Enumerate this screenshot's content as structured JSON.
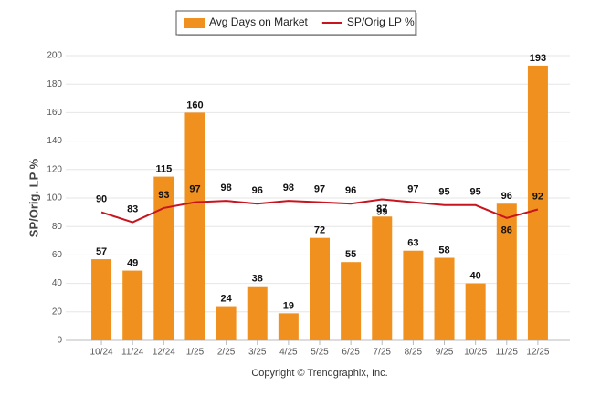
{
  "chart_data": {
    "type": "bar",
    "y_label": "SP/Orig. LP %",
    "footer": "Copyright © Trendgraphix, Inc.",
    "categories": [
      "10/24",
      "11/24",
      "12/24",
      "1/25",
      "2/25",
      "3/25",
      "4/25",
      "5/25",
      "6/25",
      "7/25",
      "8/25",
      "9/25",
      "10/25",
      "11/25",
      "12/25"
    ],
    "series": [
      {
        "name": "Avg Days on Market",
        "type": "bar",
        "color": "#f0901e",
        "values": [
          57,
          49,
          115,
          160,
          24,
          38,
          19,
          72,
          55,
          87,
          63,
          58,
          40,
          96,
          193
        ]
      },
      {
        "name": "SP/Orig LP %",
        "type": "line",
        "color": "#c8141e",
        "values": [
          90,
          83,
          93,
          97,
          98,
          96,
          98,
          97,
          96,
          99,
          97,
          95,
          95,
          86,
          92
        ]
      }
    ],
    "ylim": [
      0,
      200
    ],
    "yticks": [
      0,
      20,
      40,
      60,
      80,
      100,
      120,
      140,
      160,
      180,
      200
    ],
    "grid": true,
    "legend": "top"
  }
}
